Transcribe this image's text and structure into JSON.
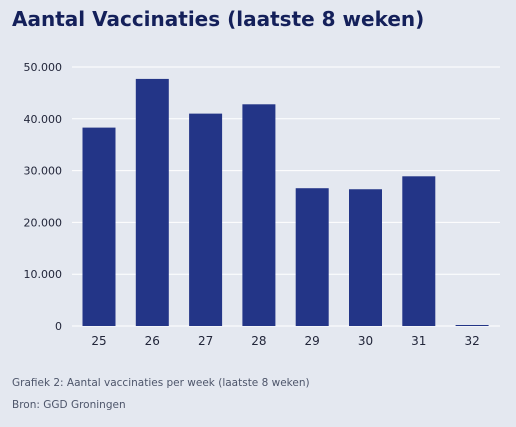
{
  "title": "Aantal Vaccinaties (laatste 8 weken)",
  "caption": "Grafiek 2: Aantal vaccinaties per week (laatste 8 weken)",
  "source": "Bron: GGD Groningen",
  "colors": {
    "background": "#e4e8f0",
    "bar": "#233587",
    "title": "#14205a",
    "grid": "#ffffff",
    "tick_text": "#22263a",
    "footer_text": "#4d556a"
  },
  "chart_data": {
    "type": "bar",
    "categories": [
      "25",
      "26",
      "27",
      "28",
      "29",
      "30",
      "31",
      "32"
    ],
    "values": [
      38300,
      47700,
      41000,
      42800,
      26600,
      26400,
      28900,
      0
    ],
    "ylim": [
      0,
      50000
    ],
    "yticks": [
      0,
      10000,
      20000,
      30000,
      40000,
      50000
    ],
    "ytick_labels": [
      "0",
      "10.000",
      "20.000",
      "30.000",
      "40.000",
      "50.000"
    ],
    "grid": true,
    "title": "Aantal Vaccinaties (laatste 8 weken)",
    "xlabel": "",
    "ylabel": ""
  }
}
